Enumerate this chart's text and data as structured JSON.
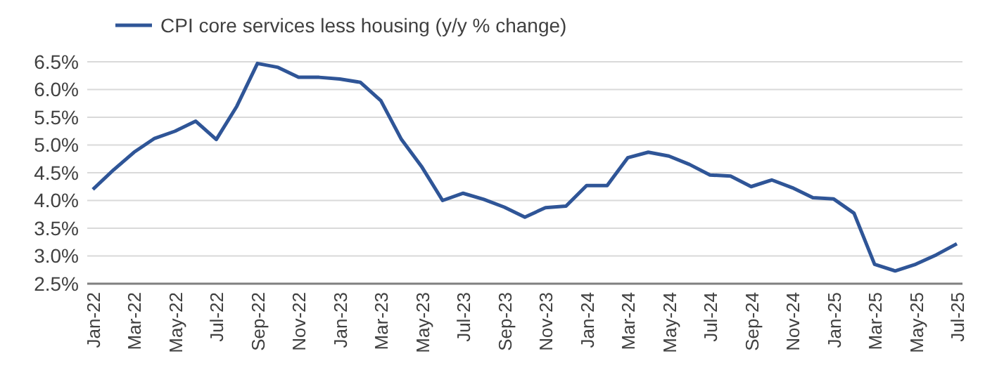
{
  "chart_data": {
    "type": "line",
    "categories": [
      "Jan-22",
      null,
      "Mar-22",
      null,
      "May-22",
      null,
      "Jul-22",
      null,
      "Sep-22",
      null,
      "Nov-22",
      null,
      "Jan-23",
      null,
      "Mar-23",
      null,
      "May-23",
      null,
      "Jul-23",
      null,
      "Sep-23",
      null,
      "Nov-23",
      null,
      "Jan-24",
      null,
      "Mar-24",
      null,
      "May-24",
      null,
      "Jul-24",
      null,
      "Sep-24",
      null,
      "Nov-24",
      null,
      "Jan-25",
      null,
      "Mar-25",
      null,
      "May-25",
      null,
      "Jul-25"
    ],
    "series": [
      {
        "name": "CPI core services less housing (y/y % change)",
        "color": "#2f5597",
        "values": [
          4.2,
          4.55,
          4.87,
          5.12,
          5.25,
          5.43,
          5.1,
          5.7,
          6.47,
          6.4,
          6.22,
          6.22,
          6.19,
          6.13,
          5.8,
          5.1,
          4.6,
          4.0,
          4.13,
          4.02,
          3.88,
          3.7,
          3.87,
          3.9,
          4.27,
          4.27,
          4.77,
          4.87,
          4.8,
          4.65,
          4.46,
          4.44,
          4.25,
          4.37,
          4.23,
          4.05,
          4.03,
          3.77,
          2.85,
          2.73,
          2.85,
          3.02,
          3.22
        ]
      }
    ],
    "ylim": [
      2.5,
      6.5
    ],
    "yticks": [
      {
        "value": 2.5,
        "label": "2.5%"
      },
      {
        "value": 3,
        "label": "3.0%"
      },
      {
        "value": 3.5,
        "label": "3.5%"
      },
      {
        "value": 4,
        "label": "4.0%"
      },
      {
        "value": 4.5,
        "label": "4.5%"
      },
      {
        "value": 5,
        "label": "5.0%"
      },
      {
        "value": 5.5,
        "label": "5.5%"
      },
      {
        "value": 6,
        "label": "6.0%"
      },
      {
        "value": 6.5,
        "label": "6.5%"
      }
    ],
    "grid": "y",
    "legend": "top left",
    "marker": "none",
    "line_style": "solid"
  }
}
